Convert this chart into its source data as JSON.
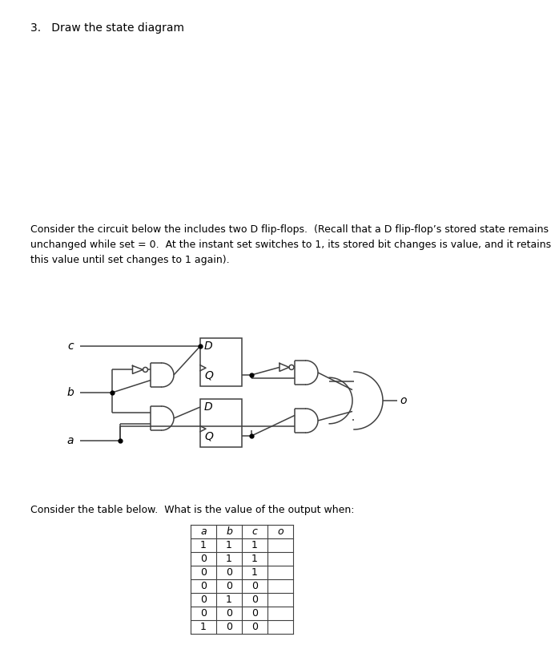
{
  "title_text": "3.   Draw the state diagram",
  "paragraph1": "Consider the circuit below the includes two D flip-flops.  (Recall that a D flip-flop’s stored state remains\nunchanged while set = 0.  At the instant set switches to 1, its stored bit changes is value, and it retains\nthis value until set changes to 1 again).",
  "paragraph2": "Consider the table below.  What is the value of the output when:",
  "table_headers": [
    "a",
    "b",
    "c",
    "o"
  ],
  "table_rows": [
    [
      "1",
      "1",
      "1",
      ""
    ],
    [
      "0",
      "1",
      "1",
      ""
    ],
    [
      "0",
      "0",
      "1",
      ""
    ],
    [
      "0",
      "0",
      "0",
      ""
    ],
    [
      "0",
      "1",
      "0",
      ""
    ],
    [
      "0",
      "0",
      "0",
      ""
    ],
    [
      "1",
      "0",
      "0",
      ""
    ]
  ],
  "bg_color": "#ffffff",
  "text_color": "#000000",
  "gate_color": "#404040"
}
